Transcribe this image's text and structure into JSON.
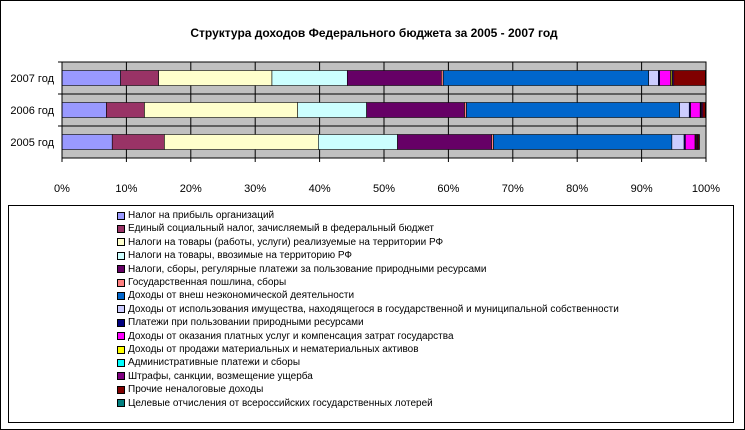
{
  "chart_data": {
    "type": "bar",
    "orientation": "horizontal",
    "stacked": "percent",
    "title": "Структура доходов Федерального бюджета за 2005 - 2007 год",
    "categories": [
      "2007 год",
      "2006 год",
      "2005 год"
    ],
    "xlim": [
      0,
      100
    ],
    "x_ticks": [
      "0%",
      "10%",
      "20%",
      "30%",
      "40%",
      "50%",
      "60%",
      "70%",
      "80%",
      "90%",
      "100%"
    ],
    "grid": true,
    "legend_position": "bottom",
    "series": [
      {
        "name": "Налог на прибыль организаций",
        "color": "#9999ff",
        "values": [
          9.1,
          6.9,
          7.8
        ]
      },
      {
        "name": "Единый социальный налог, зачисляемый в федеральный бюджет",
        "color": "#993366",
        "values": [
          5.9,
          5.9,
          8.1
        ]
      },
      {
        "name": "Налоги на товары (работы, услуги) реализуемые на территории РФ",
        "color": "#ffffcc",
        "values": [
          17.6,
          23.8,
          23.9
        ]
      },
      {
        "name": "Налоги на товары, ввозимые на территорию РФ",
        "color": "#ccffff",
        "values": [
          11.7,
          10.7,
          12.3
        ]
      },
      {
        "name": "Налоги, сборы, регулярные платежи за пользование природными ресурсами",
        "color": "#660066",
        "values": [
          14.6,
          15.2,
          14.6
        ]
      },
      {
        "name": "Государственная пошлина, сборы",
        "color": "#ff8080",
        "values": [
          0.3,
          0.3,
          0.3
        ]
      },
      {
        "name": "Доходы от внеш неэкономической деятельности",
        "color": "#0066cc",
        "values": [
          31.9,
          33.1,
          27.7
        ]
      },
      {
        "name": "Доходы от использования имущества, находящегося в государственной и муниципальной собственности",
        "color": "#ccccff",
        "values": [
          1.5,
          1.5,
          1.9
        ]
      },
      {
        "name": "Платежи при пользовании природными ресурсами",
        "color": "#000080",
        "values": [
          0.2,
          0.2,
          0.2
        ]
      },
      {
        "name": "Доходы от оказания платных услуг и компенсация затрат государства",
        "color": "#ff00ff",
        "values": [
          1.7,
          1.5,
          1.5
        ]
      },
      {
        "name": "Доходы от продажи материальных и нематериальных активов",
        "color": "#ffff00",
        "values": [
          0.2,
          0.1,
          0.1
        ]
      },
      {
        "name": "Административные платежи и сборы",
        "color": "#00ffff",
        "values": [
          0.1,
          0.1,
          0.1
        ]
      },
      {
        "name": "Штрафы, санкции, возмещение ущерба",
        "color": "#800080",
        "values": [
          0.2,
          0.2,
          0.2
        ]
      },
      {
        "name": "Прочие неналоговые доходы",
        "color": "#800000",
        "values": [
          4.9,
          0.4,
          0.2
        ]
      },
      {
        "name": "Целевые отчисления от всероссийских государственных лотерей",
        "color": "#008080",
        "values": [
          0.1,
          0.1,
          0.1
        ]
      }
    ]
  }
}
